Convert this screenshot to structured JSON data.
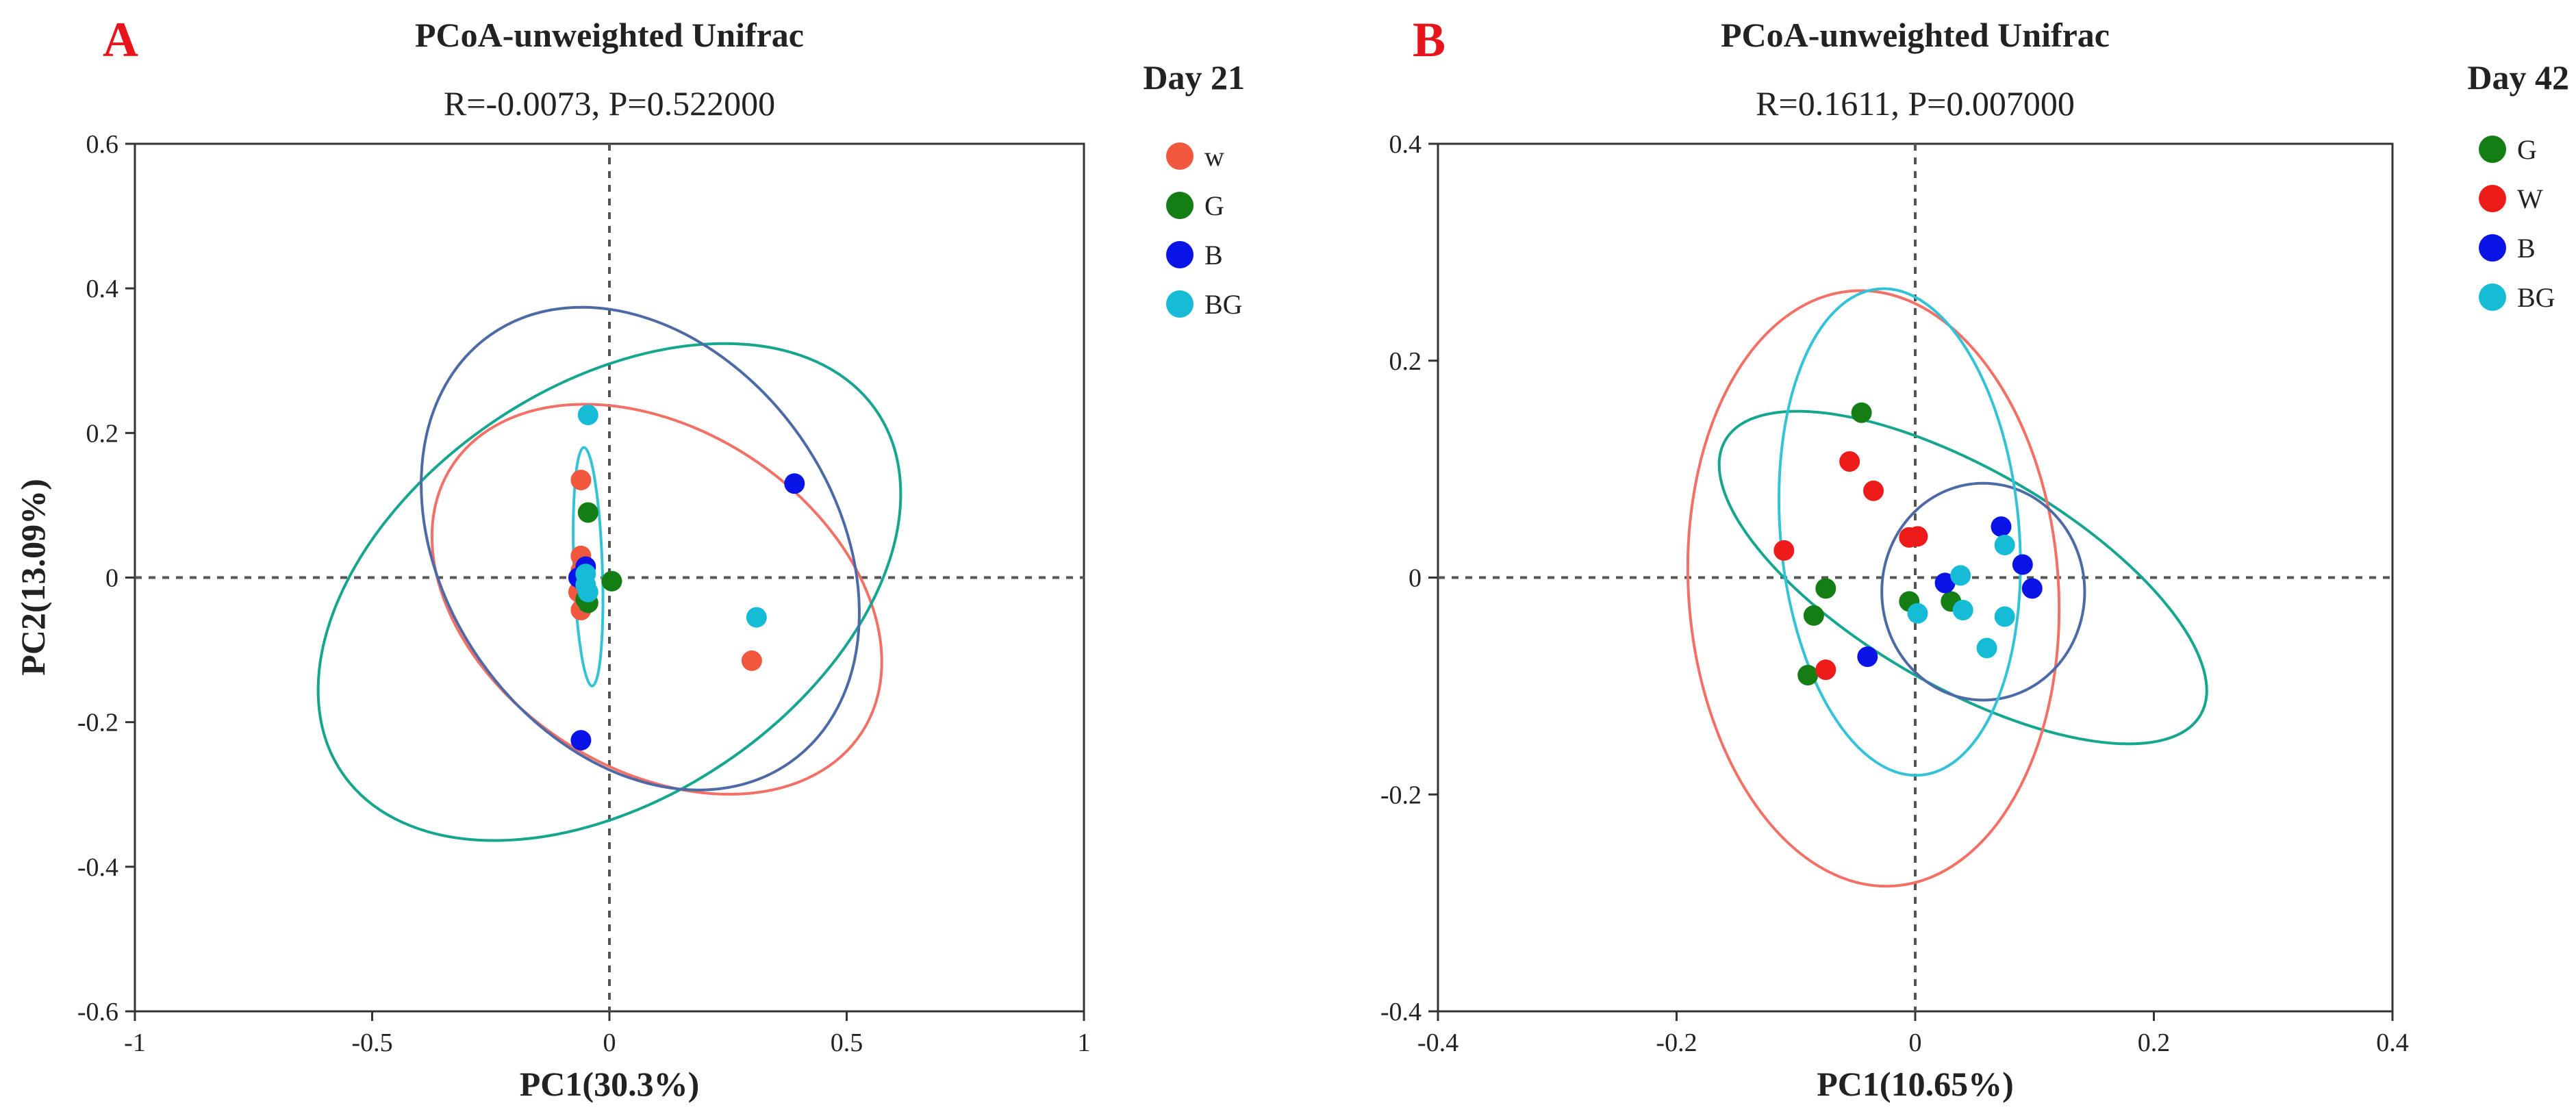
{
  "chart_data": [
    {
      "type": "scatter",
      "panel_letter": "A",
      "title": "PCoA-unweighted Unifrac",
      "subtitle": "R=-0.0073, P=0.522000",
      "legend_title": "Day 21",
      "xlabel": "PC1(30.3%)",
      "ylabel": "PC2(13.09%)",
      "xlim": [
        -1,
        1
      ],
      "ylim": [
        -0.6,
        0.6
      ],
      "xticks": [
        -1,
        -0.5,
        0,
        0.5,
        1
      ],
      "xtick_labels": [
        "-1",
        "-0.5",
        "0",
        "0.5",
        "1"
      ],
      "yticks": [
        -0.6,
        -0.4,
        -0.2,
        0,
        0.2,
        0.4,
        0.6
      ],
      "ytick_labels": [
        "-0.6",
        "-0.4",
        "-0.2",
        "0",
        "0.2",
        "0.4",
        "0.6"
      ],
      "grid": false,
      "legend_position": "right",
      "reference_lines": {
        "x": 0,
        "y": 0,
        "style": "dashed"
      },
      "series": [
        {
          "name": "w",
          "color": "#f2583e",
          "points": [
            [
              -0.06,
              0.135
            ],
            [
              -0.06,
              0.03
            ],
            [
              -0.06,
              0.01
            ],
            [
              -0.065,
              -0.02
            ],
            [
              -0.06,
              -0.045
            ],
            [
              0.3,
              -0.115
            ]
          ],
          "ellipse": {
            "cx": 0.1,
            "cy": -0.03,
            "rx": 0.515,
            "ry": 0.235,
            "angle": -33
          }
        },
        {
          "name": "G",
          "color": "#147d14",
          "points": [
            [
              -0.045,
              0.09
            ],
            [
              -0.05,
              -0.03
            ],
            [
              -0.045,
              -0.035
            ],
            [
              0.005,
              -0.005
            ]
          ],
          "ellipse": {
            "cx": 0.0,
            "cy": -0.02,
            "rx": 0.68,
            "ry": 0.285,
            "angle": 34
          }
        },
        {
          "name": "B",
          "color": "#0a14e6",
          "points": [
            [
              0.39,
              0.13
            ],
            [
              -0.065,
              0.0
            ],
            [
              -0.05,
              0.015
            ],
            [
              -0.06,
              -0.225
            ],
            [
              -0.055,
              -0.005
            ]
          ],
          "ellipse": {
            "cx": 0.065,
            "cy": 0.04,
            "rx": 0.55,
            "ry": 0.27,
            "angle": -55
          }
        },
        {
          "name": "BG",
          "color": "#16bcd5",
          "points": [
            [
              -0.045,
              0.225
            ],
            [
              0.31,
              -0.055
            ],
            [
              -0.05,
              -0.01
            ],
            [
              -0.05,
              0.005
            ],
            [
              -0.045,
              -0.02
            ]
          ],
          "ellipse": {
            "cx": -0.045,
            "cy": 0.015,
            "rx": 0.03,
            "ry": 0.165,
            "angle": 2
          }
        }
      ],
      "legend_order": [
        "w",
        "G",
        "B",
        "BG"
      ]
    },
    {
      "type": "scatter",
      "panel_letter": "B",
      "title": "PCoA-unweighted Unifrac",
      "subtitle": "R=0.1611, P=0.007000",
      "legend_title": "Day 42",
      "xlabel": "PC1(10.65%)",
      "ylabel": "",
      "xlim": [
        -0.4,
        0.4
      ],
      "ylim": [
        -0.4,
        0.4
      ],
      "xticks": [
        -0.4,
        -0.2,
        0,
        0.2,
        0.4
      ],
      "xtick_labels": [
        "-0.4",
        "-0.2",
        "0",
        "0.2",
        "0.4"
      ],
      "yticks": [
        -0.4,
        -0.2,
        0,
        0.2,
        0.4
      ],
      "ytick_labels": [
        "-0.4",
        "-0.2",
        "0",
        "0.2",
        "0.4"
      ],
      "grid": false,
      "legend_position": "right",
      "reference_lines": {
        "x": 0,
        "y": 0,
        "style": "dashed"
      },
      "series": [
        {
          "name": "G",
          "color": "#147d14",
          "points": [
            [
              -0.045,
              0.152
            ],
            [
              -0.075,
              -0.01
            ],
            [
              -0.085,
              -0.035
            ],
            [
              -0.09,
              -0.09
            ],
            [
              -0.005,
              -0.022
            ],
            [
              0.03,
              -0.022
            ]
          ],
          "ellipse": {
            "cx": 0.04,
            "cy": 0.0,
            "rx": 0.23,
            "ry": 0.1,
            "angle": -30
          }
        },
        {
          "name": "W",
          "color": "#ee1b1b",
          "points": [
            [
              -0.055,
              0.107
            ],
            [
              -0.035,
              0.08
            ],
            [
              -0.11,
              0.025
            ],
            [
              -0.005,
              0.037
            ],
            [
              0.002,
              0.038
            ],
            [
              -0.075,
              -0.085
            ]
          ],
          "ellipse": {
            "cx": -0.035,
            "cy": -0.01,
            "rx": 0.155,
            "ry": 0.275,
            "angle": 4
          }
        },
        {
          "name": "B",
          "color": "#0a14e6",
          "points": [
            [
              0.072,
              0.047
            ],
            [
              0.09,
              0.012
            ],
            [
              0.098,
              -0.01
            ],
            [
              0.025,
              -0.005
            ],
            [
              -0.04,
              -0.073
            ]
          ],
          "ellipse": {
            "cx": 0.057,
            "cy": -0.013,
            "rx": 0.085,
            "ry": 0.1,
            "angle": 0
          }
        },
        {
          "name": "BG",
          "color": "#16bcd5",
          "points": [
            [
              0.075,
              0.03
            ],
            [
              0.038,
              0.002
            ],
            [
              0.04,
              -0.03
            ],
            [
              0.075,
              -0.036
            ],
            [
              0.06,
              -0.065
            ],
            [
              0.002,
              -0.033
            ]
          ],
          "ellipse": {
            "cx": -0.013,
            "cy": 0.042,
            "rx": 0.1,
            "ry": 0.225,
            "angle": 5
          }
        }
      ],
      "legend_order": [
        "G",
        "W",
        "B",
        "BG"
      ]
    }
  ]
}
